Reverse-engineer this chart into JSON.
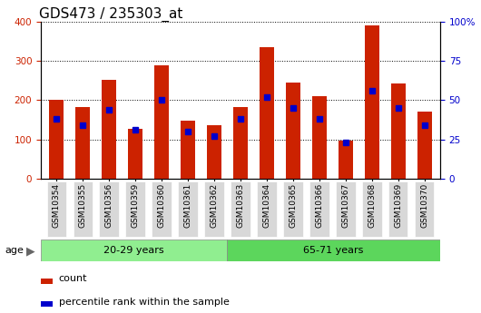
{
  "title": "GDS473 / 235303_at",
  "samples": [
    "GSM10354",
    "GSM10355",
    "GSM10356",
    "GSM10359",
    "GSM10360",
    "GSM10361",
    "GSM10362",
    "GSM10363",
    "GSM10364",
    "GSM10365",
    "GSM10366",
    "GSM10367",
    "GSM10368",
    "GSM10369",
    "GSM10370"
  ],
  "counts": [
    200,
    182,
    253,
    126,
    290,
    148,
    137,
    182,
    335,
    246,
    210,
    96,
    390,
    243,
    170
  ],
  "percentile_ranks_pct": [
    38,
    34,
    44,
    31,
    50,
    30,
    27,
    38,
    52,
    45,
    38,
    23,
    56,
    45,
    34
  ],
  "group1_label": "20-29 years",
  "group2_label": "65-71 years",
  "group1_count": 7,
  "group2_count": 8,
  "bar_color": "#CC2200",
  "percentile_color": "#0000CC",
  "ylim_left": [
    0,
    400
  ],
  "ylim_right": [
    0,
    100
  ],
  "yticks_left": [
    0,
    100,
    200,
    300,
    400
  ],
  "yticks_right": [
    0,
    25,
    50,
    75,
    100
  ],
  "group1_bg": "#90EE90",
  "group2_bg": "#5CD65C",
  "age_label": "age",
  "legend_count": "count",
  "legend_percentile": "percentile rank within the sample",
  "tick_fontsize": 7.5,
  "bar_width": 0.55
}
